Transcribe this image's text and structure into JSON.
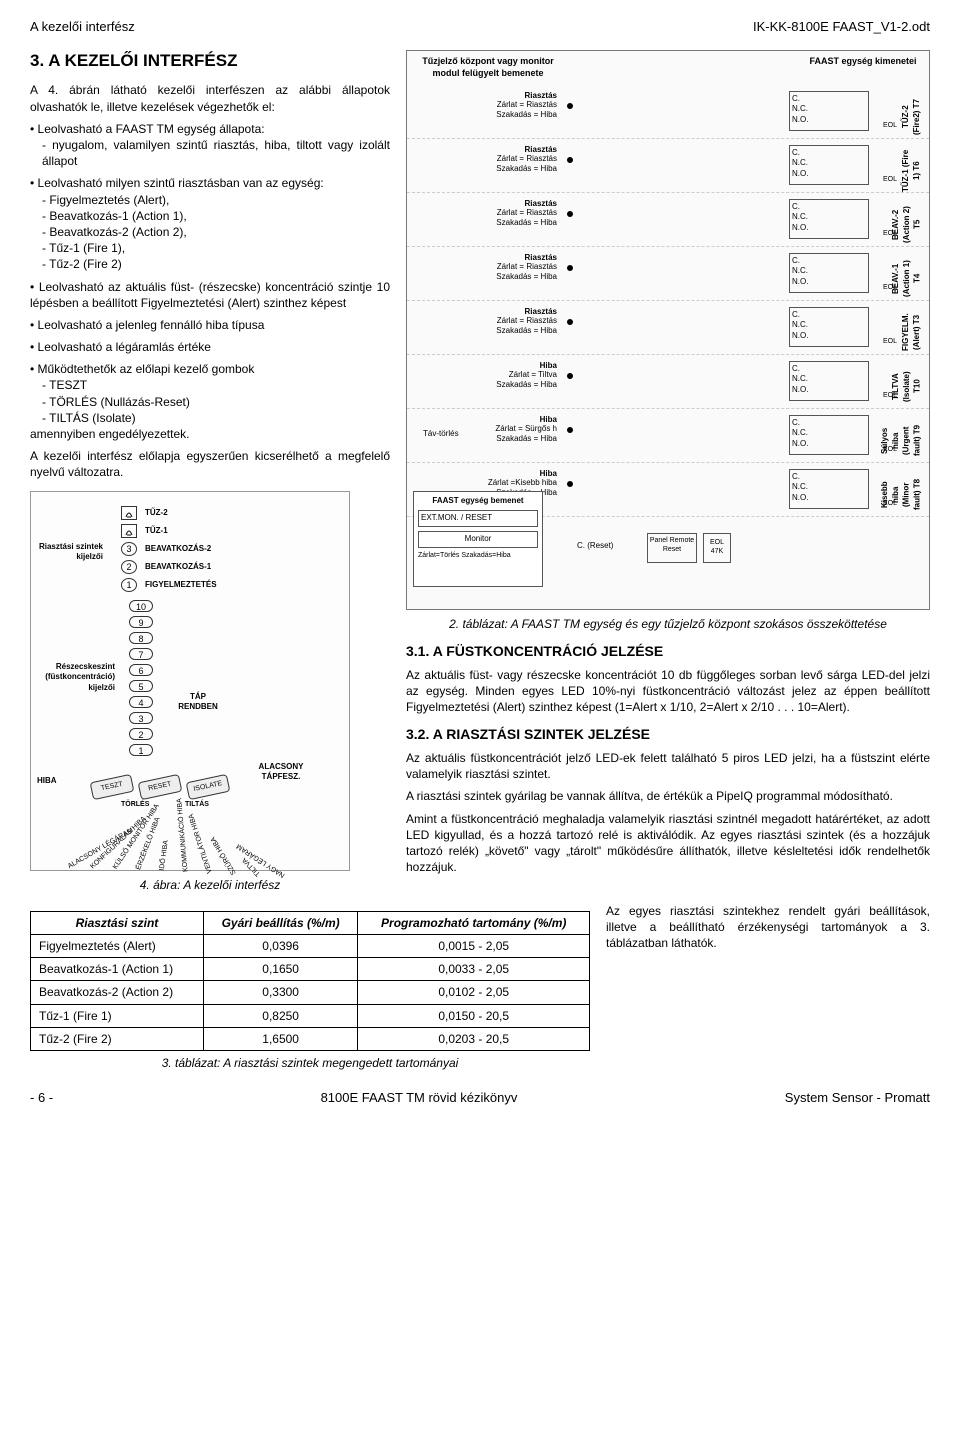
{
  "header": {
    "left": "A kezelői interfész",
    "right": "IK-KK-8100E FAAST_V1-2.odt"
  },
  "title": "3. A KEZELŐI INTERFÉSZ",
  "intro": "A 4. ábrán látható kezelői interfészen az alábbi állapotok olvashatók le, illetve kezelések végezhetők el:",
  "bullets": [
    {
      "text": "Leolvasható a FAAST TM egység állapota:",
      "sub": [
        "nyugalom, valamilyen szintű riasztás, hiba, tiltott vagy izolált állapot"
      ]
    },
    {
      "text": "Leolvasható milyen szintű riasztásban van az egység:",
      "sub": [
        "Figyelmeztetés (Alert),",
        "Beavatkozás-1 (Action 1),",
        "Beavatkozás-2 (Action 2),",
        "Tűz-1 (Fire 1),",
        "Tűz-2 (Fire 2)"
      ]
    },
    {
      "text": "Leolvasható az aktuális füst- (részecske) koncentráció szintje 10 lépésben a beállított Figyelmeztetési (Alert) szinthez képest"
    },
    {
      "text": "Leolvasható a jelenleg fennálló hiba típusa"
    },
    {
      "text": "Leolvasható a légáramlás értéke"
    },
    {
      "text": "Működtethetők az előlapi kezelő gombok",
      "sub": [
        "TESZT",
        "TÖRLÉS (Nullázás-Reset)",
        "TILTÁS (Isolate)"
      ],
      "tail": "amennyiben engedélyezettek."
    }
  ],
  "outro": "A kezelői interfész előlapja egyszerűen kicserélhető a megfelelő nyelvű változatra.",
  "diagram": {
    "title_left": "Tűzjelző központ vagy monitor modul felügyelt bemenete",
    "title_right": "FAAST egység kimenetei",
    "rows": [
      {
        "trig_top": "Riasztás",
        "trig_mid": "Zárlat = Riasztás",
        "trig_bot": "Szakadás = Hiba",
        "out": "TŰZ-2 (Fire2) T7"
      },
      {
        "trig_top": "Riasztás",
        "trig_mid": "Zárlat = Riasztás",
        "trig_bot": "Szakadás = Hiba",
        "out": "TŰZ-1 (Fire 1) T6"
      },
      {
        "trig_top": "Riasztás",
        "trig_mid": "Zárlat = Riasztás",
        "trig_bot": "Szakadás = Hiba",
        "out": "BEAV.-2 (Action 2) T5"
      },
      {
        "trig_top": "Riasztás",
        "trig_mid": "Zárlat = Riasztás",
        "trig_bot": "Szakadás = Hiba",
        "out": "BEAV.-1 (Action 1) T4"
      },
      {
        "trig_top": "Riasztás",
        "trig_mid": "Zárlat = Riasztás",
        "trig_bot": "Szakadás = Hiba",
        "out": "FIGYELM. (Alert) T3"
      },
      {
        "trig_top": "Hiba",
        "trig_mid": "Zárlat = Tiltva",
        "trig_bot": "Szakadás = Hiba",
        "out": "TILTVA (Isolate) T10"
      },
      {
        "trig_top": "Hiba",
        "trig_mid": "Zárlat = Sürgős h",
        "trig_bot": "Szakadás = Hiba",
        "out": "Súlyos hiba (Urgent fault) T9",
        "extra": "Táv-törlés"
      },
      {
        "trig_top": "Hiba",
        "trig_mid": "Zárlat =Kisebb hiba",
        "trig_bot": "Szakadás = Hiba",
        "out": "Kisebb hiba (Minor fault) T8"
      }
    ],
    "relay": {
      "c": "C.",
      "nc": "N.C.",
      "no": "N.O."
    },
    "eol": "EOL",
    "bottom_box": {
      "title": "FAAST egység bemenet",
      "ext": "EXT.MON. / RESET",
      "mon": "Monitor",
      "zarlat": "Zárlat=Törlés Szakadás=Hiba"
    },
    "creset": "C. (Reset)",
    "panel_remote": "Panel Remote Reset",
    "eol47": "EOL 47K",
    "caption": "2. táblázat: A FAAST TM egység és egy tűzjelző központ szokásos összeköttetése"
  },
  "panel": {
    "labels": {
      "alarm": "Riasztási szintek kijelzői",
      "particle": "Részecskeszint (füstkoncentráció) kijelzői",
      "hiba": "HIBA"
    },
    "alarm_levels": [
      "TŰZ-2",
      "TŰZ-1",
      "BEAVATKOZÁS-2",
      "BEAVATKOZÁS-1",
      "FIGYELMEZTETÉS"
    ],
    "scale": [
      "10",
      "9",
      "8",
      "7",
      "6",
      "5",
      "4",
      "3",
      "2",
      "1"
    ],
    "tap": "TÁP RENDBEN",
    "alacsony": "ALACSONY TÁPFESZ.",
    "buttons": [
      "TESZT",
      "RESET",
      "ISOLATE"
    ],
    "buttons2": [
      "TÖRLÉS",
      "TILTÁS"
    ],
    "radial": [
      "ALACSONY LÉGÁRAM",
      "KONFIGURÁLÁS HIBA",
      "KÜLSŐ MONITOR HIBA",
      "ÉRZÉKELŐ HIBA",
      "IDŐ HIBA",
      "KOMMUNIKÁCIÓ HIBA",
      "VENTILÁTOR HIBA",
      "SZŰRŐ HIBA",
      "TILTVA",
      "NAGY LÉGÁRAM"
    ],
    "caption": "4. ábra: A kezelői interfész"
  },
  "section31": {
    "title": "3.1. A FÜSTKONCENTRÁCIÓ JELZÉSE",
    "body": "Az aktuális füst- vagy részecske koncentrációt 10 db függőleges sorban levő sárga LED-del jelzi az egység. Minden egyes LED 10%-nyi füstkoncentráció változást jelez az éppen beállított Figyelmeztetési (Alert) szinthez képest (1=Alert x 1/10, 2=Alert x 2/10 . . . 10=Alert)."
  },
  "section32": {
    "title": "3.2. A RIASZTÁSI SZINTEK JELZÉSE",
    "p1": "Az aktuális füstkoncentrációt jelző LED-ek felett található 5 piros LED jelzi, ha a füstszint elérte valamelyik riasztási szintet.",
    "p2": "A riasztási szintek gyárilag be vannak állítva, de értékük a PipeIQ programmal módosítható.",
    "p3": "Amint a füstkoncentráció meghaladja valamelyik riasztási szintnél megadott határértéket, az adott LED kigyullad, és a hozzá tartozó relé is aktiválódik. Az egyes riasztási szintek (és a hozzájuk tartozó relék) „követő\" vagy „tárolt\" működésűre állíthatók, illetve késleltetési idők rendelhetők hozzájuk.",
    "p4": "Az egyes riasztási szintekhez rendelt gyári beállítások, illetve a beállítható érzékenységi tartományok a 3. táblázatban láthatók."
  },
  "table3": {
    "headers": [
      "Riasztási szint",
      "Gyári beállítás (%/m)",
      "Programozható tartomány (%/m)"
    ],
    "rows": [
      [
        "Figyelmeztetés (Alert)",
        "0,0396",
        "0,0015 -  2,05"
      ],
      [
        "Beavatkozás-1 (Action 1)",
        "0,1650",
        "0,0033 -  2,05"
      ],
      [
        "Beavatkozás-2 (Action 2)",
        "0,3300",
        "0,0102 -  2,05"
      ],
      [
        "Tűz-1 (Fire 1)",
        "0,8250",
        "0,0150 - 20,5"
      ],
      [
        "Tűz-2 (Fire 2)",
        "1,6500",
        "0,0203 - 20,5"
      ]
    ],
    "caption": "3. táblázat: A riasztási szintek megengedett tartományai"
  },
  "footer": {
    "left": "- 6 -",
    "mid": "8100E FAAST TM rövid kézikönyv",
    "right": "System Sensor - Promatt"
  }
}
